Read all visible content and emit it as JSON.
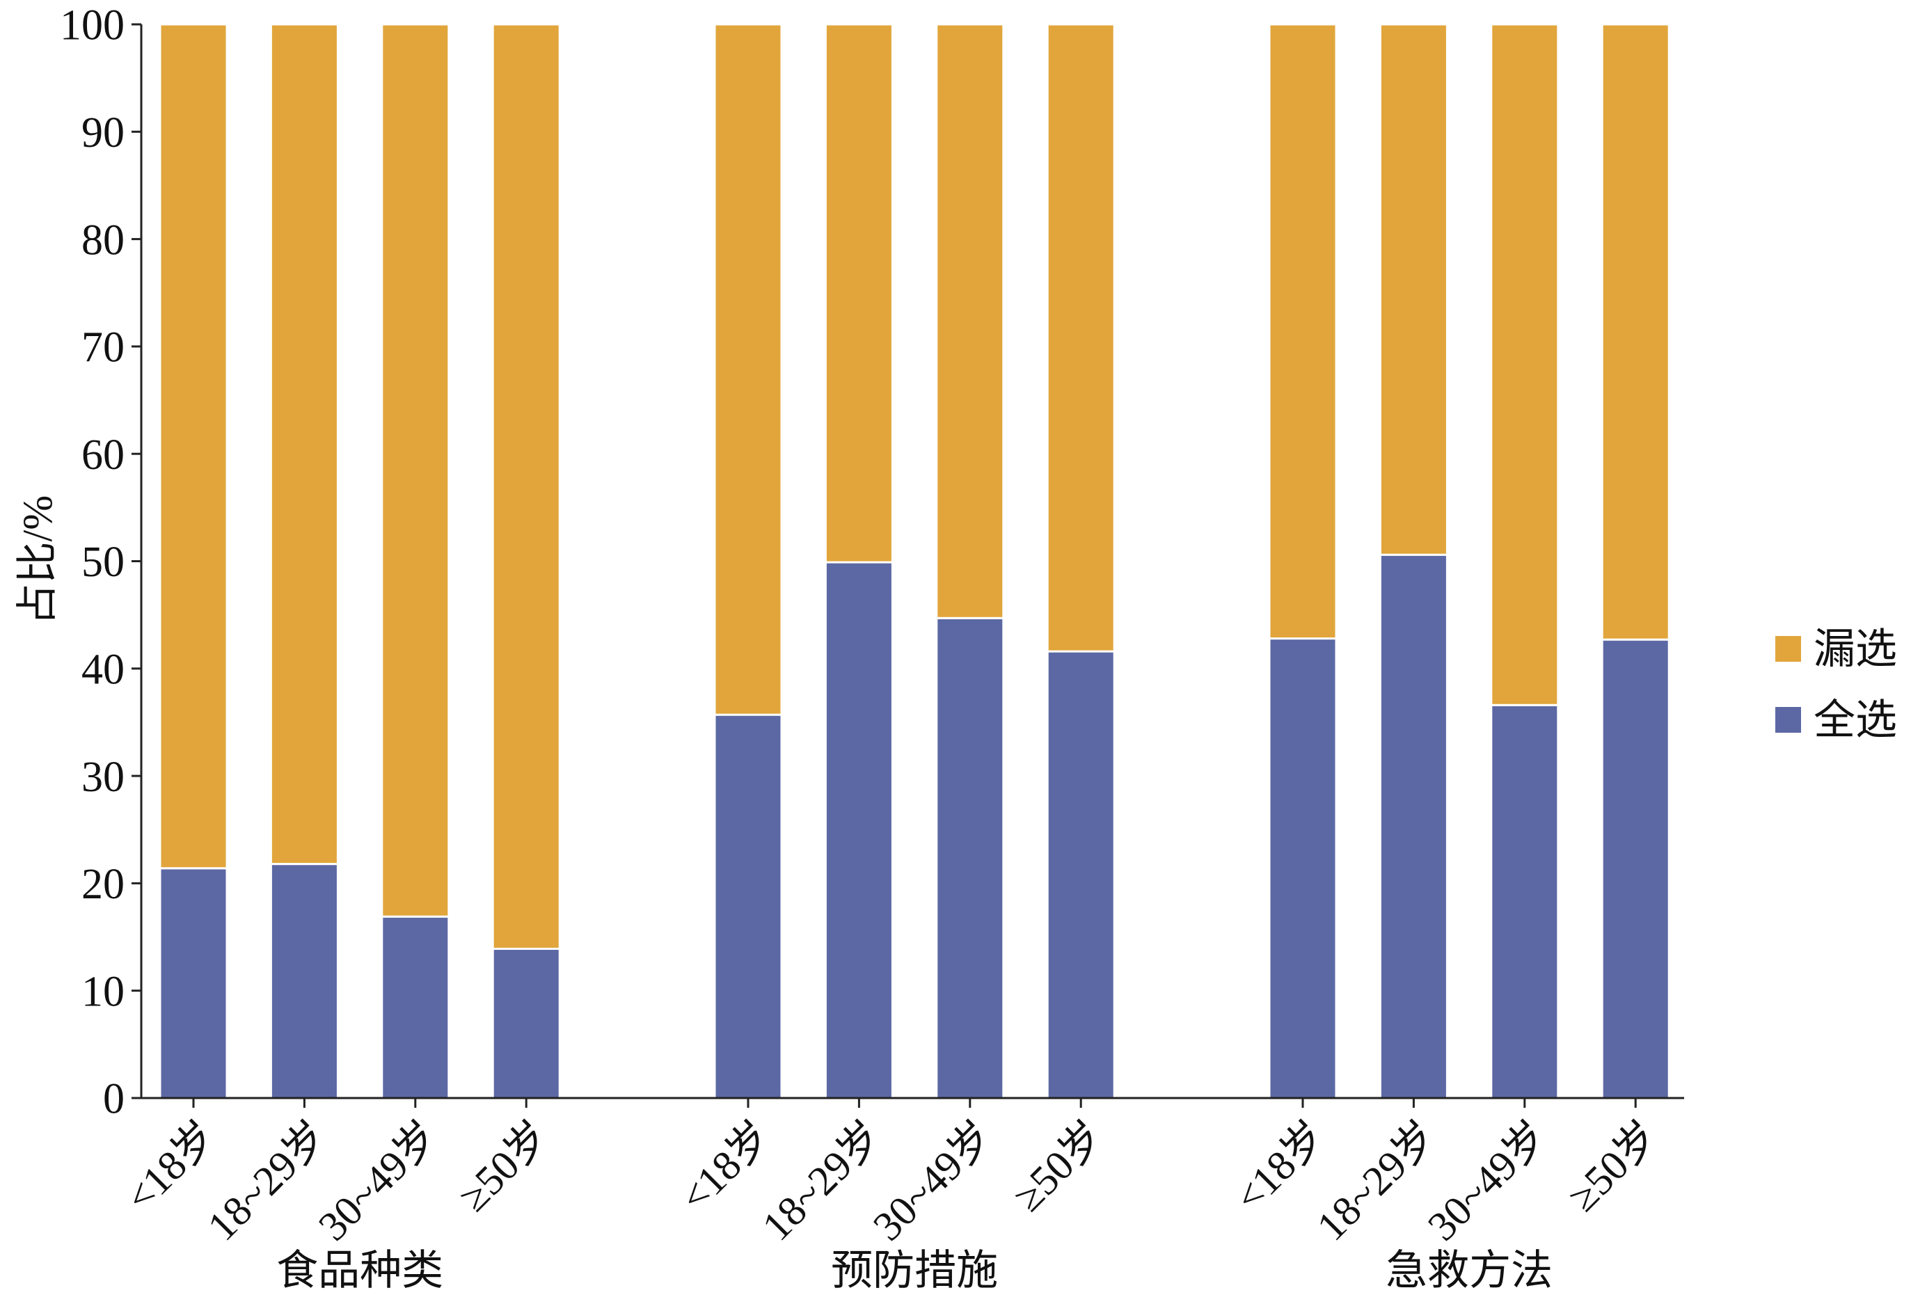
{
  "chart_data": {
    "type": "bar",
    "stacked": true,
    "ylabel": "占比/%",
    "ylim": [
      0,
      100
    ],
    "yticks": [
      0,
      10,
      20,
      30,
      40,
      50,
      60,
      70,
      80,
      90,
      100
    ],
    "grid": false,
    "legend": "right",
    "groups": [
      {
        "label": "食品种类",
        "categories": [
          "<18岁",
          "18~29岁",
          "30~49岁",
          "≥50岁"
        ]
      },
      {
        "label": "预防措施",
        "categories": [
          "<18岁",
          "18~29岁",
          "30~49岁",
          "≥50岁"
        ]
      },
      {
        "label": "急救方法",
        "categories": [
          "<18岁",
          "18~29岁",
          "30~49岁",
          "≥50岁"
        ]
      }
    ],
    "series": [
      {
        "name": "全选",
        "color": "#5C68A4",
        "values": [
          [
            21.4,
            21.8,
            16.9,
            13.9
          ],
          [
            35.7,
            49.9,
            44.7,
            41.6
          ],
          [
            42.8,
            50.6,
            36.6,
            42.7
          ]
        ]
      },
      {
        "name": "漏选",
        "color": "#E1A53B",
        "values": [
          [
            78.6,
            78.2,
            83.1,
            86.1
          ],
          [
            64.3,
            50.1,
            55.3,
            58.4
          ],
          [
            57.2,
            49.4,
            63.4,
            57.3
          ]
        ]
      }
    ]
  }
}
